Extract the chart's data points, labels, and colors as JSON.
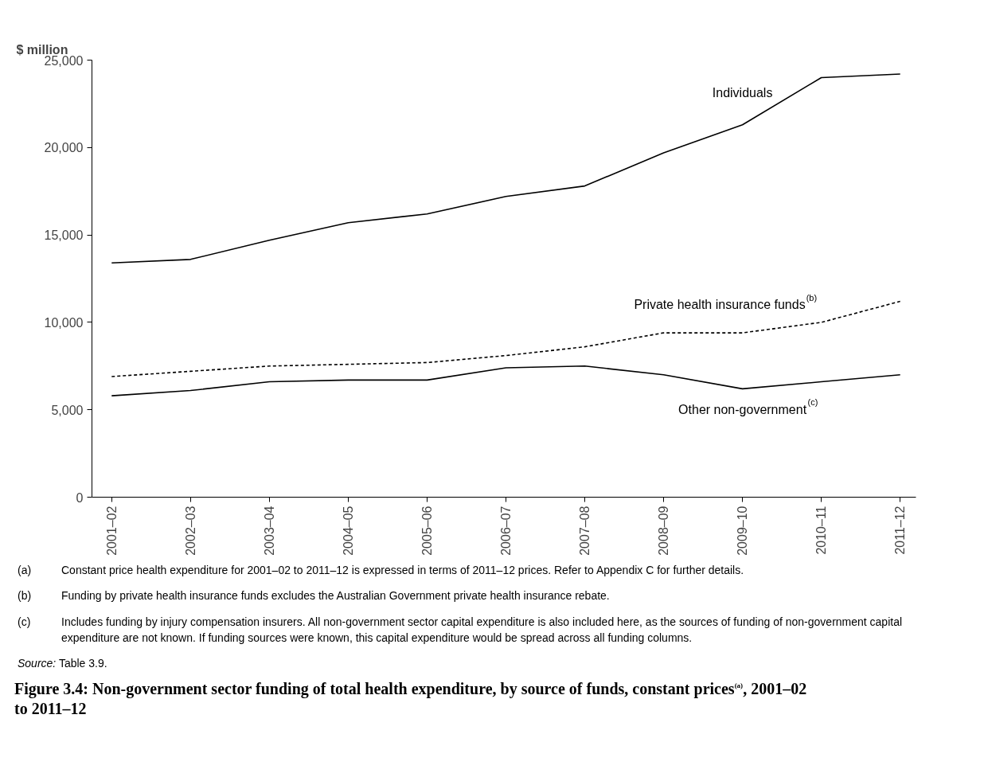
{
  "chart_data": {
    "type": "line",
    "title": "Figure 3.4: Non-government sector funding of total health expenditure, by source of funds, constant prices$^{(a)}$, 2001–02 to 2011–12",
    "ylabel": "$ million",
    "categories": [
      "2001–02",
      "2002–03",
      "2003–04",
      "2004–05",
      "2005–06",
      "2006–07",
      "2007–08",
      "2008–09",
      "2009–10",
      "2010–11",
      "2011–12"
    ],
    "series": [
      {
        "name": "Individuals",
        "color": "#000000",
        "line_style": "solid",
        "values": [
          13400,
          13600,
          14700,
          15700,
          16200,
          17200,
          17800,
          19700,
          21300,
          24000,
          24200
        ]
      },
      {
        "name": "Private health insurance funds$^{(b)}$",
        "color": "#000000",
        "line_style": "dashed",
        "values": [
          6900,
          7200,
          7500,
          7600,
          7700,
          8100,
          8600,
          9400,
          9400,
          10000,
          11200
        ]
      },
      {
        "name": "Other non-government$^{(c)}$",
        "color": "#000000",
        "line_style": "solid",
        "values": [
          5800,
          6100,
          6600,
          6700,
          6700,
          7400,
          7500,
          7000,
          6200,
          6600,
          7000
        ]
      }
    ],
    "ylim": [
      0,
      25000
    ],
    "yticks": [
      0,
      {
        "value": 5000,
        "label": "5,000"
      },
      {
        "value": 10000,
        "label": "10,000"
      },
      {
        "value": 15000,
        "label": "15,000"
      },
      {
        "value": 20000,
        "label": "20,000"
      },
      {
        "value": 25000,
        "label": "25,000"
      }
    ],
    "grid": false,
    "legend": false,
    "marker": "none",
    "annotations": [
      "(a) Constant price health expenditure for 2001–02 to 2011–12 is expressed in terms of 2011–12 prices. Refer to Appendix C for further details.",
      "(b) Funding by private health insurance funds excludes the Australian Government private health insurance rebate.",
      "(c) Includes funding by injury compensation insurers. All non-government sector capital expenditure is also included here, as the sources of funding of non-government capital expenditure are not known. If funding sources were known, this capital expenditure would be spread across all funding columns.",
      "Source: Table 3.9."
    ]
  }
}
